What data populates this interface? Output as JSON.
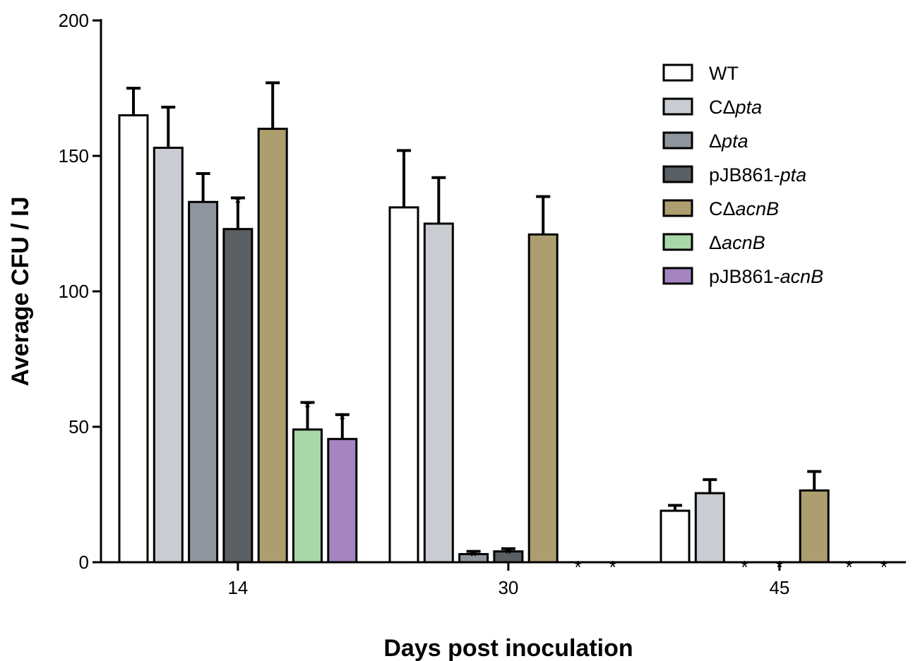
{
  "chart_data": {
    "type": "bar",
    "xlabel": "Days post inoculation",
    "ylabel": "Average CFU / IJ",
    "ylim": [
      0,
      200
    ],
    "yticks": [
      "0",
      "50",
      "100",
      "150",
      "200"
    ],
    "categories": [
      "14",
      "30",
      "45"
    ],
    "significance_marker": "*",
    "legend_position": "top-right",
    "series": [
      {
        "name": "WT",
        "legend_parts": [
          {
            "text": "WT",
            "italic": false
          }
        ],
        "color": "#ffffff",
        "values": [
          165,
          131,
          19
        ],
        "errors": [
          10,
          21,
          2
        ],
        "significant": [
          false,
          false,
          false
        ]
      },
      {
        "name": "CΔpta",
        "legend_parts": [
          {
            "text": "CΔ",
            "italic": false
          },
          {
            "text": "pta",
            "italic": true
          }
        ],
        "color": "#c9ccd0",
        "values": [
          153,
          125,
          25.5
        ],
        "errors": [
          15,
          17,
          5
        ],
        "significant": [
          false,
          false,
          false
        ]
      },
      {
        "name": "Δpta",
        "legend_parts": [
          {
            "text": "Δ",
            "italic": false
          },
          {
            "text": "pta",
            "italic": true
          }
        ],
        "color": "#8f959c",
        "values": [
          133,
          3,
          0
        ],
        "errors": [
          10.5,
          1,
          0
        ],
        "significant": [
          false,
          true,
          true
        ]
      },
      {
        "name": "pJB861-pta",
        "legend_parts": [
          {
            "text": "pJB861-",
            "italic": false
          },
          {
            "text": "pta",
            "italic": true
          }
        ],
        "color": "#5a5f63",
        "values": [
          123,
          4,
          0
        ],
        "errors": [
          11.5,
          1,
          0
        ],
        "significant": [
          true,
          true,
          true
        ]
      },
      {
        "name": "CΔacnB",
        "legend_parts": [
          {
            "text": "CΔ",
            "italic": false
          },
          {
            "text": "acnB",
            "italic": true
          }
        ],
        "color": "#ad9e6f",
        "values": [
          160,
          121,
          26.5
        ],
        "errors": [
          17,
          14,
          7
        ],
        "significant": [
          false,
          false,
          false
        ]
      },
      {
        "name": "ΔacnB",
        "legend_parts": [
          {
            "text": "Δ",
            "italic": false
          },
          {
            "text": "acnB",
            "italic": true
          }
        ],
        "color": "#a8d8a8",
        "values": [
          49,
          0,
          0
        ],
        "errors": [
          10,
          0,
          0
        ],
        "significant": [
          true,
          true,
          true
        ]
      },
      {
        "name": "pJB861-acnB",
        "legend_parts": [
          {
            "text": "pJB861-",
            "italic": false
          },
          {
            "text": "acnB",
            "italic": true
          }
        ],
        "color": "#a585c0",
        "values": [
          45.5,
          0,
          0
        ],
        "errors": [
          9,
          0,
          0
        ],
        "significant": [
          true,
          true,
          true
        ]
      }
    ]
  }
}
